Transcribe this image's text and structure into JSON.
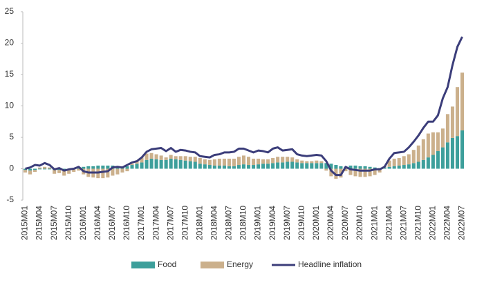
{
  "chart_data": {
    "type": "bar",
    "stacked": true,
    "categories": [
      "2015M01",
      null,
      null,
      "2015M04",
      null,
      null,
      "2015M07",
      null,
      null,
      "2015M10",
      null,
      null,
      "2016M01",
      null,
      null,
      "2016M04",
      null,
      null,
      "2016M07",
      null,
      null,
      "2016M10",
      null,
      null,
      "2017M01",
      null,
      null,
      "2017M04",
      null,
      null,
      "2017M07",
      null,
      null,
      "2017M10",
      null,
      null,
      "2018M01",
      null,
      null,
      "2018M04",
      null,
      null,
      "2018M07",
      null,
      null,
      "2018M10",
      null,
      null,
      "2019M01",
      null,
      null,
      "2019M04",
      null,
      null,
      "2019M07",
      null,
      null,
      "2019M10",
      null,
      null,
      "2020M01",
      null,
      null,
      "2020M04",
      null,
      null,
      "2020M07",
      null,
      null,
      "2020M10",
      null,
      null,
      "2021M01",
      null,
      null,
      "2021M04",
      null,
      null,
      "2021M07",
      null,
      null,
      "2021M10",
      null,
      null,
      "2022M01",
      null,
      null,
      "2022M04",
      null,
      null,
      "2022M07"
    ],
    "series": [
      {
        "name": "Food",
        "type": "bar",
        "color": "#3d9f9b",
        "values": [
          -0.2,
          -0.3,
          -0.2,
          -0.1,
          -0.1,
          -0.1,
          -0.2,
          -0.2,
          -0.2,
          -0.1,
          0,
          0.1,
          0.3,
          0.4,
          0.4,
          0.5,
          0.5,
          0.5,
          0.5,
          0.3,
          0.2,
          0.4,
          0.6,
          0.8,
          1.0,
          1.4,
          1.6,
          1.5,
          1.4,
          1.4,
          1.6,
          1.5,
          1.4,
          1.3,
          1.2,
          1.1,
          0.8,
          0.7,
          0.6,
          0.5,
          0.5,
          0.5,
          0.4,
          0.4,
          0.6,
          0.7,
          0.6,
          0.6,
          0.7,
          0.8,
          0.8,
          0.9,
          1.0,
          1.0,
          1.1,
          1.1,
          1.0,
          0.9,
          0.9,
          0.9,
          0.9,
          0.9,
          0.9,
          0.8,
          0.6,
          0.4,
          0.3,
          0.5,
          0.5,
          0.4,
          0.4,
          0.3,
          0.2,
          0.1,
          0.2,
          0.3,
          0.4,
          0.5,
          0.6,
          0.7,
          0.9,
          1.1,
          1.4,
          1.8,
          2.2,
          2.8,
          3.4,
          4.2,
          4.9,
          5.2,
          6.1
        ]
      },
      {
        "name": "Energy",
        "type": "bar",
        "color": "#cbb08c",
        "values": [
          -0.4,
          -0.6,
          -0.3,
          0.2,
          0.3,
          0.2,
          -0.6,
          -0.5,
          -0.9,
          -0.7,
          -0.5,
          -0.3,
          -0.9,
          -1.3,
          -1.4,
          -1.5,
          -1.5,
          -1.4,
          -1.1,
          -0.9,
          -0.6,
          -0.4,
          0.2,
          0.5,
          0.8,
          1.0,
          0.9,
          0.8,
          0.7,
          0.4,
          0.6,
          0.5,
          0.6,
          0.7,
          0.7,
          0.8,
          0.9,
          0.8,
          0.8,
          1.0,
          1.1,
          1.1,
          1.2,
          1.2,
          1.3,
          1.4,
          1.3,
          1.0,
          0.9,
          0.7,
          0.7,
          0.8,
          0.9,
          0.9,
          0.8,
          0.7,
          0.5,
          0.4,
          0.3,
          0.3,
          0.4,
          0.3,
          -0.3,
          -1.2,
          -1.6,
          -1.4,
          -0.4,
          -1.0,
          -1.2,
          -1.3,
          -1.3,
          -1.2,
          -1.0,
          -0.6,
          0.2,
          1.0,
          1.2,
          1.2,
          1.4,
          1.6,
          2.1,
          2.6,
          3.3,
          3.8,
          3.6,
          3.0,
          3.0,
          4.5,
          5.0,
          7.8,
          9.2
        ]
      },
      {
        "name": "Headline inflation",
        "type": "line",
        "color": "#3b3d7a",
        "values": [
          0,
          0.2,
          0.6,
          0.5,
          0.9,
          0.6,
          -0.1,
          0.1,
          -0.3,
          -0.1,
          0,
          0.3,
          -0.4,
          -0.6,
          -0.6,
          -0.6,
          -0.5,
          -0.4,
          0.2,
          0.3,
          0.2,
          0.6,
          1.0,
          1.2,
          1.8,
          2.7,
          3.1,
          3.2,
          3.3,
          2.8,
          3.3,
          2.7,
          3.0,
          2.9,
          2.7,
          2.6,
          2.0,
          1.9,
          1.8,
          2.2,
          2.3,
          2.6,
          2.6,
          2.7,
          3.2,
          3.2,
          2.9,
          2.6,
          2.9,
          2.8,
          2.6,
          3.2,
          3.4,
          2.9,
          3.0,
          3.1,
          2.3,
          2.1,
          2.0,
          2.1,
          2.2,
          2.1,
          1.2,
          -0.3,
          -1.0,
          -1.0,
          0.3,
          -0.1,
          -0.2,
          -0.3,
          -0.3,
          -0.3,
          -0.1,
          -0.1,
          0.3,
          1.6,
          2.5,
          2.6,
          2.7,
          3.4,
          4.3,
          5.3,
          6.5,
          7.5,
          7.5,
          8.5,
          11.2,
          13.0,
          16.5,
          19.4,
          21.0
        ]
      }
    ],
    "ylim": [
      -5,
      25
    ],
    "yticks": [
      -5,
      0,
      5,
      10,
      15,
      20,
      25
    ],
    "grid": false,
    "legend": "bottom"
  }
}
